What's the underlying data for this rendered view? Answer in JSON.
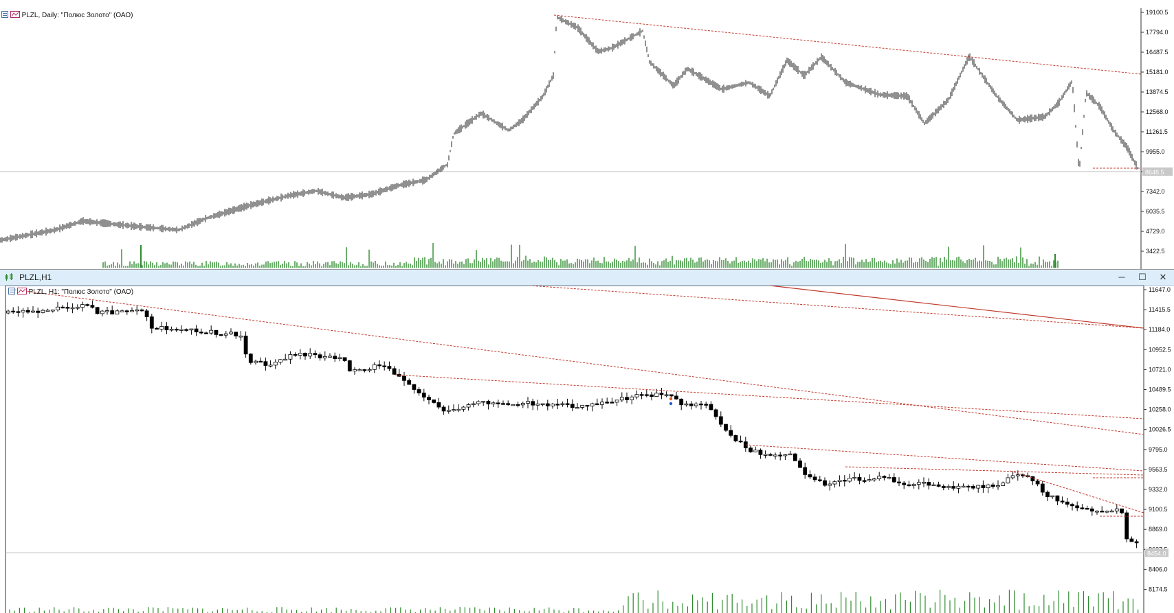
{
  "top_window": {
    "legend": "PLZL, Daily: \"Полюс Золото\" (ОАО)",
    "price_axis": [
      "19100.5",
      "17794.0",
      "16487.5",
      "15181.0",
      "13874.5",
      "12568.0",
      "11261.5",
      "9955.0",
      "8648.5",
      "7342.0",
      "6035.5",
      "4729.0",
      "3422.5"
    ],
    "current_price": "8648.5",
    "colors": {
      "candle": "#222222",
      "volume": "#2e8b2e",
      "trendline": "#c0392b",
      "grid": "#bcbcbc"
    }
  },
  "bottom_window": {
    "title": "PLZL,H1",
    "legend": "PLZL, H1: \"Полюс Золото\" (ОАО)",
    "controls": {
      "minimize": "─",
      "maximize": "☐",
      "close": "✕"
    },
    "price_axis": [
      "11647.0",
      "11415.5",
      "11184.0",
      "10952.5",
      "10721.0",
      "10489.5",
      "10258.0",
      "10026.5",
      "9795.0",
      "9563.5",
      "9332.0",
      "9100.5",
      "8869.0",
      "8637.5",
      "8406.0",
      "8174.5"
    ],
    "current_price": "8454.0",
    "colors": {
      "bull": "#ffffff",
      "bear": "#000000",
      "volume": "#2e8b2e",
      "trendline": "#c0392b"
    }
  },
  "icons": {
    "chart_icon": "chart-window-icon",
    "legend_icons": [
      "list-icon",
      "indicator-icon"
    ]
  }
}
